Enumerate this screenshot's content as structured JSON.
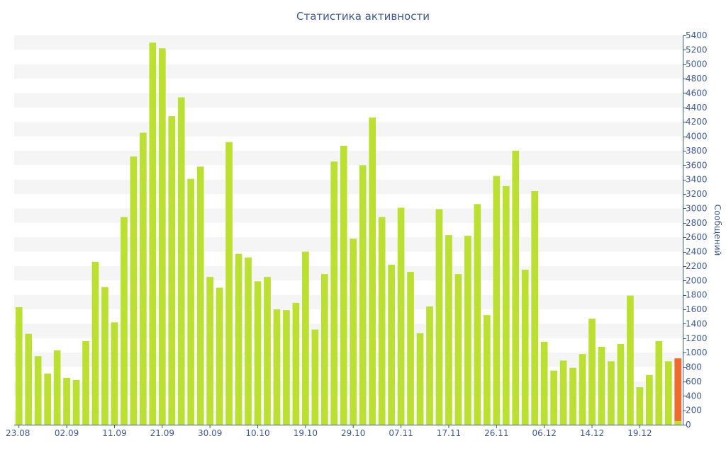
{
  "chart_data": {
    "type": "bar",
    "title": "Статистика активности",
    "ylabel": "Сообщений",
    "xlabel": "",
    "ylim": [
      0,
      5400
    ],
    "yticks": [
      0,
      200,
      400,
      600,
      800,
      1000,
      1200,
      1400,
      1600,
      1800,
      2000,
      2200,
      2400,
      2600,
      2800,
      3000,
      3200,
      3400,
      3600,
      3800,
      4000,
      4200,
      4400,
      4600,
      4800,
      5000,
      5200,
      5400
    ],
    "y_axis_side": "right",
    "grid": "alternating horizontal bands",
    "legend": "none",
    "x_tick_labels": [
      {
        "index": 0,
        "label": "23.08"
      },
      {
        "index": 5,
        "label": "02.09"
      },
      {
        "index": 10,
        "label": "11.09"
      },
      {
        "index": 15,
        "label": "21.09"
      },
      {
        "index": 20,
        "label": "30.09"
      },
      {
        "index": 25,
        "label": "10.10"
      },
      {
        "index": 30,
        "label": "19.10"
      },
      {
        "index": 35,
        "label": "29.10"
      },
      {
        "index": 40,
        "label": "07.11"
      },
      {
        "index": 45,
        "label": "17.11"
      },
      {
        "index": 50,
        "label": "26.11"
      },
      {
        "index": 55,
        "label": "06.12"
      },
      {
        "index": 60,
        "label": "14.12"
      },
      {
        "index": 65,
        "label": "19.12"
      }
    ],
    "values": [
      1630,
      1260,
      950,
      710,
      1030,
      650,
      620,
      1160,
      2260,
      1910,
      1420,
      2880,
      3720,
      4050,
      5300,
      5220,
      4280,
      4540,
      3410,
      3580,
      2050,
      1900,
      3920,
      2370,
      2320,
      1990,
      2050,
      1600,
      1590,
      1690,
      2400,
      1320,
      2090,
      3650,
      3870,
      2580,
      3600,
      4260,
      2880,
      2220,
      3010,
      2120,
      1270,
      1640,
      2990,
      2630,
      2090,
      2620,
      3060,
      1520,
      3450,
      3310,
      3800,
      2150,
      3240,
      1150,
      750,
      890,
      790,
      980,
      1470,
      1080,
      880,
      1120,
      1790,
      520,
      690,
      1160,
      880,
      920
    ],
    "colors": {
      "bar": "#bbe032",
      "current_bar": "#ef6a2c",
      "current_bar_base": "#bbe032",
      "axis_text": "#3f5b92",
      "grid_band": "#f5f5f5"
    },
    "current_bar_index": 69,
    "current_bar_base_value": 50
  }
}
